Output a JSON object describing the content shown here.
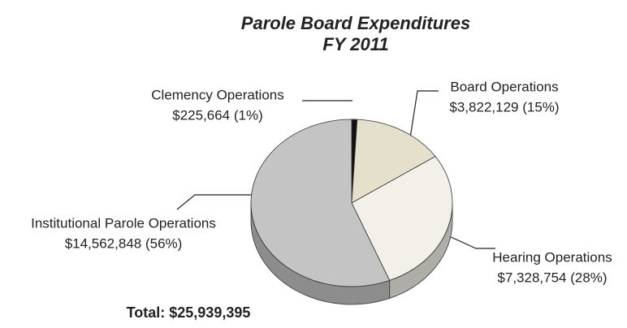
{
  "chart_data": {
    "type": "pie",
    "title": "Parole Board Expenditures",
    "subtitle": "FY 2011",
    "categories": [
      "Clemency Operations",
      "Board Operations",
      "Hearing Operations",
      "Institutional Parole Operations"
    ],
    "values": [
      225664,
      3822129,
      7328754,
      14562848
    ],
    "value_labels": [
      "$225,664 (1%)",
      "$3,822,129 (15%)",
      "$7,328,754 (28%)",
      "$14,562,848 (56%)"
    ],
    "colors": [
      "#111111",
      "#e4e0cc",
      "#f2f0e8",
      "#c4c4c4"
    ],
    "annotation": "Total: $25,939,395"
  }
}
